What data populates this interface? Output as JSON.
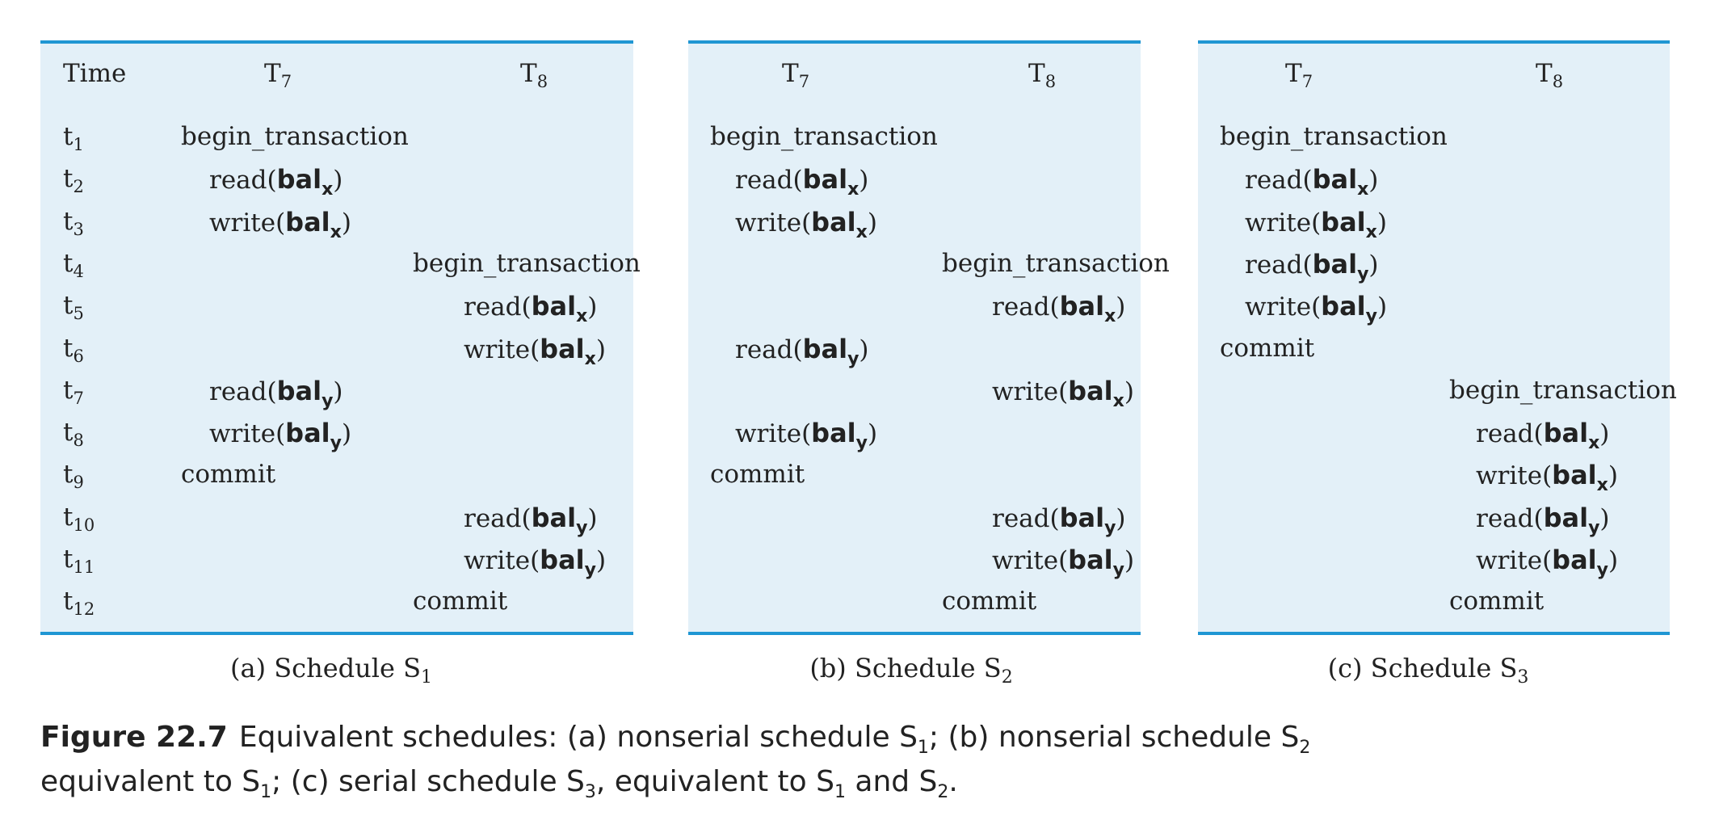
{
  "schedules": [
    {
      "caption": "(a) Schedule S",
      "caption_sub": "1",
      "headers": {
        "time": "Time",
        "t7": "T",
        "t7_sub": "7",
        "t8": "T",
        "t8_sub": "8"
      },
      "rows": [
        {
          "time": "t",
          "time_sub": "1",
          "t7": "begin_transaction",
          "t8": ""
        },
        {
          "time": "t",
          "time_sub": "2",
          "t7": "read(balx)",
          "t8": ""
        },
        {
          "time": "t",
          "time_sub": "3",
          "t7": "write(balx)",
          "t8": ""
        },
        {
          "time": "t",
          "time_sub": "4",
          "t7": "",
          "t8": "begin_transaction"
        },
        {
          "time": "t",
          "time_sub": "5",
          "t7": "",
          "t8": "read(balx)"
        },
        {
          "time": "t",
          "time_sub": "6",
          "t7": "",
          "t8": "write(balx)"
        },
        {
          "time": "t",
          "time_sub": "7",
          "t7": "read(baly)",
          "t8": ""
        },
        {
          "time": "t",
          "time_sub": "8",
          "t7": "write(baly)",
          "t8": ""
        },
        {
          "time": "t",
          "time_sub": "9",
          "t7": "commit",
          "t8": ""
        },
        {
          "time": "t",
          "time_sub": "10",
          "t7": "",
          "t8": "read(baly)"
        },
        {
          "time": "t",
          "time_sub": "11",
          "t7": "",
          "t8": "write(baly)"
        },
        {
          "time": "t",
          "time_sub": "12",
          "t7": "",
          "t8": "commit"
        }
      ]
    },
    {
      "caption": "(b) Schedule S",
      "caption_sub": "2",
      "headers": {
        "t7": "T",
        "t7_sub": "7",
        "t8": "T",
        "t8_sub": "8"
      },
      "rows": [
        {
          "t7": "begin_transaction",
          "t8": ""
        },
        {
          "t7": "read(balx)",
          "t8": ""
        },
        {
          "t7": "write(balx)",
          "t8": ""
        },
        {
          "t7": "",
          "t8": "begin_transaction"
        },
        {
          "t7": "",
          "t8": "read(balx)"
        },
        {
          "t7": "read(baly)",
          "t8": ""
        },
        {
          "t7": "",
          "t8": "write(balx)"
        },
        {
          "t7": "write(baly)",
          "t8": ""
        },
        {
          "t7": "commit",
          "t8": ""
        },
        {
          "t7": "",
          "t8": "read(baly)"
        },
        {
          "t7": "",
          "t8": "write(baly)"
        },
        {
          "t7": "",
          "t8": "commit"
        }
      ]
    },
    {
      "caption": "(c) Schedule S",
      "caption_sub": "3",
      "headers": {
        "t7": "T",
        "t7_sub": "7",
        "t8": "T",
        "t8_sub": "8"
      },
      "rows": [
        {
          "t7": "begin_transaction",
          "t8": ""
        },
        {
          "t7": "read(balx)",
          "t8": ""
        },
        {
          "t7": "write(balx)",
          "t8": ""
        },
        {
          "t7": "read(baly)",
          "t8": ""
        },
        {
          "t7": "write(baly)",
          "t8": ""
        },
        {
          "t7": "commit",
          "t8": ""
        },
        {
          "t7": "",
          "t8": "begin_transaction"
        },
        {
          "t7": "",
          "t8": "read(balx)"
        },
        {
          "t7": "",
          "t8": "write(balx)"
        },
        {
          "t7": "",
          "t8": "read(baly)"
        },
        {
          "t7": "",
          "t8": "write(baly)"
        },
        {
          "t7": "",
          "t8": "commit"
        }
      ]
    }
  ],
  "figure_caption": {
    "label": "Figure 22.7",
    "part1": "Equivalent schedules: (a) nonserial schedule S",
    "s1a": "1",
    "part2": "; (b) nonserial schedule S",
    "s2a": "2",
    "part3": "equivalent to S",
    "s1b": "1",
    "part4": "; (c) serial schedule S",
    "s3": "3",
    "part5": ", equivalent to S",
    "s1c": "1",
    "part6": " and S",
    "s2b": "2",
    "part7": "."
  },
  "colors": {
    "panel_bg": "#e3f0f8",
    "rule": "#1f96d3",
    "text": "#222222"
  }
}
